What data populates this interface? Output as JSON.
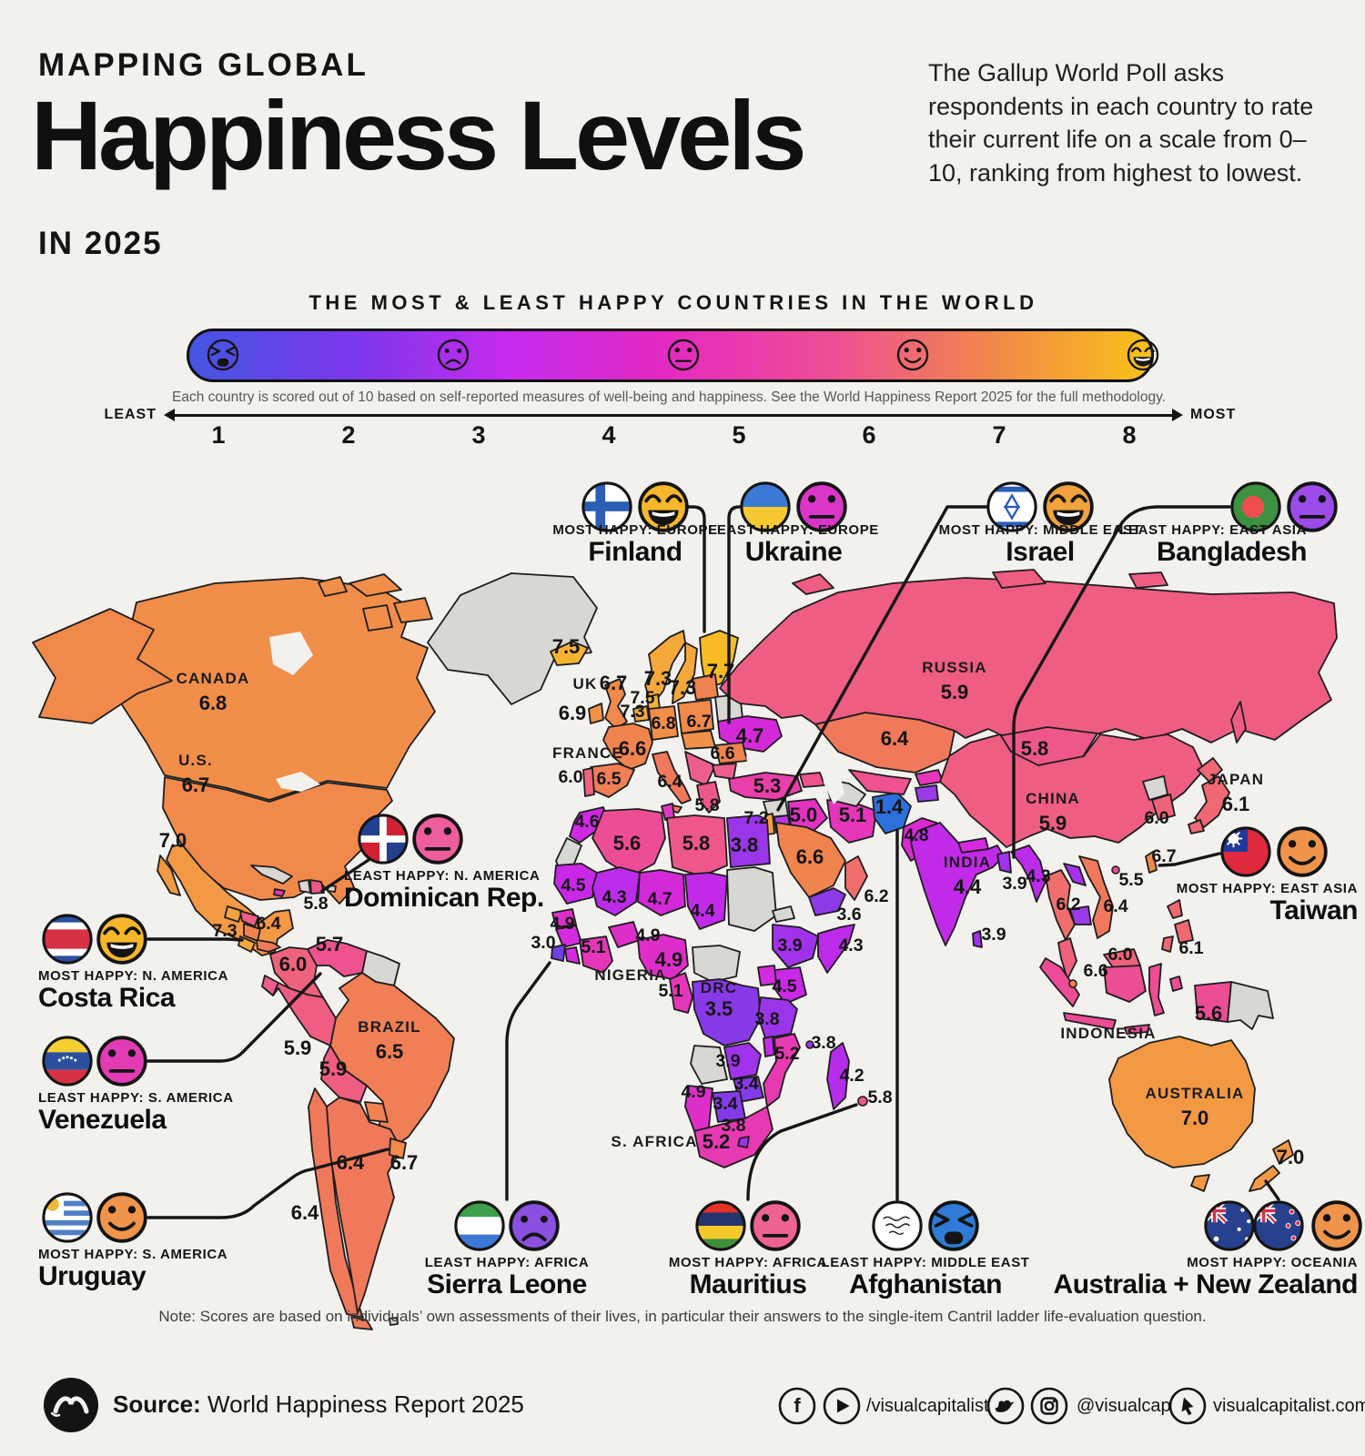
{
  "header": {
    "kicker": "MAPPING GLOBAL",
    "title": "Happiness Levels",
    "subtitle": "IN 2025",
    "intro": "The Gallup World Poll asks respondents in each country to rate their current life on a scale from 0–10, ranking from highest to lowest."
  },
  "scale": {
    "title": "THE MOST & LEAST HAPPY COUNTRIES IN THE WORLD",
    "caption": "Each country is scored out of 10 based on self-reported measures of well-being and happiness. See the World Happiness Report 2025 for the full methodology.",
    "least_label": "LEAST",
    "most_label": "MOST",
    "ticks": [
      "1",
      "2",
      "3",
      "4",
      "5",
      "6",
      "7",
      "8"
    ],
    "faces": [
      "angry",
      "frown",
      "neutral",
      "smile",
      "laugh"
    ],
    "gradient": [
      "#4455e2",
      "#7b37ea",
      "#c42bee",
      "#e42ac0",
      "#ee4f94",
      "#f0864b",
      "#f8c218"
    ]
  },
  "map": {
    "countries": [
      {
        "id": "canada",
        "label": "CANADA",
        "value": "6.8"
      },
      {
        "id": "us",
        "label": "U.S.",
        "value": "6.7"
      },
      {
        "id": "mexico",
        "value": "7.0"
      },
      {
        "id": "costarica_m",
        "value": "7.3"
      },
      {
        "id": "panama",
        "value": "6.4"
      },
      {
        "id": "dominican_m",
        "value": "5.8"
      },
      {
        "id": "colombia",
        "value": "6.0"
      },
      {
        "id": "venezuela_m",
        "value": "5.7"
      },
      {
        "id": "brazil",
        "label": "BRAZIL",
        "value": "6.5"
      },
      {
        "id": "peru",
        "value": "5.9"
      },
      {
        "id": "bolivia",
        "value": "5.9"
      },
      {
        "id": "chile",
        "value": "6.4"
      },
      {
        "id": "argentina",
        "value": "6.4"
      },
      {
        "id": "uruguay_m",
        "value": "6.7"
      },
      {
        "id": "iceland",
        "value": "7.5"
      },
      {
        "id": "uk",
        "label": "UK",
        "value": "6.7"
      },
      {
        "id": "ireland",
        "value": "6.9"
      },
      {
        "id": "norway",
        "value": "7.3"
      },
      {
        "id": "sweden",
        "value": "7.3"
      },
      {
        "id": "finland_m",
        "value": "7.7"
      },
      {
        "id": "denmark",
        "value": "7.5"
      },
      {
        "id": "netherlands",
        "value": "7.3"
      },
      {
        "id": "germany",
        "value": "6.8"
      },
      {
        "id": "poland",
        "value": "6.7"
      },
      {
        "id": "france",
        "label": "FRANCE",
        "value": "6.6"
      },
      {
        "id": "portugal",
        "value": "6.0"
      },
      {
        "id": "spain",
        "value": "6.5"
      },
      {
        "id": "italy",
        "value": "6.4"
      },
      {
        "id": "greece",
        "value": "5.8"
      },
      {
        "id": "ukraine_m",
        "value": "4.7"
      },
      {
        "id": "romania",
        "value": "6.6"
      },
      {
        "id": "turkey",
        "value": "5.3"
      },
      {
        "id": "russia",
        "label": "RUSSIA",
        "value": "5.9"
      },
      {
        "id": "kazakhstan",
        "value": "6.4"
      },
      {
        "id": "mongolia",
        "value": "5.8"
      },
      {
        "id": "china",
        "label": "CHINA",
        "value": "5.9"
      },
      {
        "id": "japan",
        "label": "JAPAN",
        "value": "6.1"
      },
      {
        "id": "southkorea",
        "value": "6.0"
      },
      {
        "id": "taiwan_m",
        "value": "6.7"
      },
      {
        "id": "hongkong",
        "value": "5.5"
      },
      {
        "id": "israel_m",
        "value": "7.2"
      },
      {
        "id": "iraq",
        "value": "5.0"
      },
      {
        "id": "iran",
        "value": "5.1"
      },
      {
        "id": "afghanistan_m",
        "value": "1.4"
      },
      {
        "id": "pakistan",
        "value": "4.8"
      },
      {
        "id": "saudi",
        "value": "6.6"
      },
      {
        "id": "oman",
        "value": "6.2"
      },
      {
        "id": "yemen",
        "value": "3.6"
      },
      {
        "id": "india",
        "label": "INDIA",
        "value": "4.4"
      },
      {
        "id": "bangladesh_m",
        "value": "3.9"
      },
      {
        "id": "srilanka",
        "value": "3.9"
      },
      {
        "id": "myanmar",
        "value": "4.3"
      },
      {
        "id": "thailand",
        "value": "6.2"
      },
      {
        "id": "vietnam",
        "value": "6.4"
      },
      {
        "id": "malaysia",
        "value": "6.0"
      },
      {
        "id": "singapore",
        "value": "6.6"
      },
      {
        "id": "philippines",
        "value": "6.1"
      },
      {
        "id": "indonesia",
        "label": "INDONESIA",
        "value": "5.6"
      },
      {
        "id": "australia",
        "label": "AUSTRALIA",
        "value": "7.0"
      },
      {
        "id": "newzealand",
        "value": "7.0"
      },
      {
        "id": "morocco",
        "value": "4.6"
      },
      {
        "id": "algeria",
        "value": "5.6"
      },
      {
        "id": "libya",
        "value": "5.8"
      },
      {
        "id": "egypt",
        "value": "3.8"
      },
      {
        "id": "mauritania",
        "value": "4.5"
      },
      {
        "id": "mali",
        "value": "4.3"
      },
      {
        "id": "niger",
        "value": "4.7"
      },
      {
        "id": "chad",
        "value": "4.4"
      },
      {
        "id": "senegal",
        "value": "4.9"
      },
      {
        "id": "sierraleone_m",
        "value": "3.0"
      },
      {
        "id": "ivorycoast",
        "value": "5.1"
      },
      {
        "id": "burkina",
        "value": "4.9"
      },
      {
        "id": "nigeria",
        "label": "NIGERIA",
        "value": "4.9"
      },
      {
        "id": "cameroon",
        "value": "5.1"
      },
      {
        "id": "drc",
        "label": "DRC",
        "value": "3.5"
      },
      {
        "id": "ethiopia",
        "value": "3.9"
      },
      {
        "id": "somalia",
        "value": "4.3"
      },
      {
        "id": "kenya",
        "value": "4.5"
      },
      {
        "id": "tanzania",
        "value": "3.8"
      },
      {
        "id": "comoros",
        "value": "3.8"
      },
      {
        "id": "mozambique",
        "value": "5.2"
      },
      {
        "id": "zambia",
        "value": "3.9"
      },
      {
        "id": "zimbabwe",
        "value": "3.4"
      },
      {
        "id": "botswana",
        "value": "3.4"
      },
      {
        "id": "namibia",
        "value": "4.9"
      },
      {
        "id": "southafrica",
        "label": "S. AFRICA",
        "value": "5.2"
      },
      {
        "id": "lesotho",
        "value": "3.8"
      },
      {
        "id": "madagascar",
        "value": "4.2"
      },
      {
        "id": "mauritius_m",
        "value": "5.8"
      }
    ]
  },
  "callouts": [
    {
      "id": "finland",
      "category": "MOST HAPPY: EUROPE",
      "country": "Finland",
      "flag": "finland",
      "emoji": "laugh",
      "emoji_color": "#f6b82a"
    },
    {
      "id": "ukraine",
      "category": "LEAST HAPPY: EUROPE",
      "country": "Ukraine",
      "flag": "ukraine",
      "emoji": "neutral",
      "emoji_color": "#da35c8"
    },
    {
      "id": "israel",
      "category": "MOST HAPPY: MIDDLE EAST",
      "country": "Israel",
      "flag": "israel",
      "emoji": "laugh",
      "emoji_color": "#f2a23d"
    },
    {
      "id": "bangladesh",
      "category": "LEAST HAPPY: EAST ASIA",
      "country": "Bangladesh",
      "flag": "bangladesh",
      "emoji": "neutral",
      "emoji_color": "#9b4be8"
    },
    {
      "id": "dominican",
      "category": "LEAST HAPPY: N. AMERICA",
      "country": "Dominican Rep.",
      "flag": "dominican",
      "emoji": "neutral",
      "emoji_color": "#ee5d9c"
    },
    {
      "id": "costarica",
      "category": "MOST HAPPY: N. AMERICA",
      "country": "Costa Rica",
      "flag": "costarica",
      "emoji": "laugh",
      "emoji_color": "#f6b82a"
    },
    {
      "id": "venezuela",
      "category": "LEAST HAPPY: S. AMERICA",
      "country": "Venezuela",
      "flag": "venezuela",
      "emoji": "neutral",
      "emoji_color": "#e23bb4"
    },
    {
      "id": "uruguay",
      "category": "MOST HAPPY: S. AMERICA",
      "country": "Uruguay",
      "flag": "uruguay",
      "emoji": "smile",
      "emoji_color": "#f0944c"
    },
    {
      "id": "sierraleone",
      "category": "LEAST HAPPY: AFRICA",
      "country": "Sierra Leone",
      "flag": "sierraleone",
      "emoji": "sad",
      "emoji_color": "#8a50e0"
    },
    {
      "id": "mauritius",
      "category": "MOST HAPPY: AFRICA",
      "country": "Mauritius",
      "flag": "mauritius",
      "emoji": "neutral",
      "emoji_color": "#ee6392"
    },
    {
      "id": "afghanistan",
      "category": "LEAST HAPPY: MIDDLE EAST",
      "country": "Afghanistan",
      "flag": "afghanistan",
      "emoji": "angry",
      "emoji_color": "#2e7cd8"
    },
    {
      "id": "australianz",
      "category": "MOST HAPPY: OCEANIA",
      "country": "Australia + New Zealand",
      "flag": "australia",
      "flag2": "newzealand",
      "emoji": "smile",
      "emoji_color": "#f0944c"
    },
    {
      "id": "taiwan",
      "category": "MOST HAPPY: EAST ASIA",
      "country": "Taiwan",
      "flag": "taiwan",
      "emoji": "smile",
      "emoji_color": "#f0944c"
    }
  ],
  "note": "Note: Scores are based on individuals’ own assessments of their lives, in particular their answers to the single-item Cantril ladder life-evaluation question.",
  "footer": {
    "source_label": "Source:",
    "source": " World Happiness Report 2025",
    "handle_fb_yt": "/visualcapitalist",
    "handle_tw_ig": "@visualcap",
    "website": "visualcapitalist.com"
  }
}
